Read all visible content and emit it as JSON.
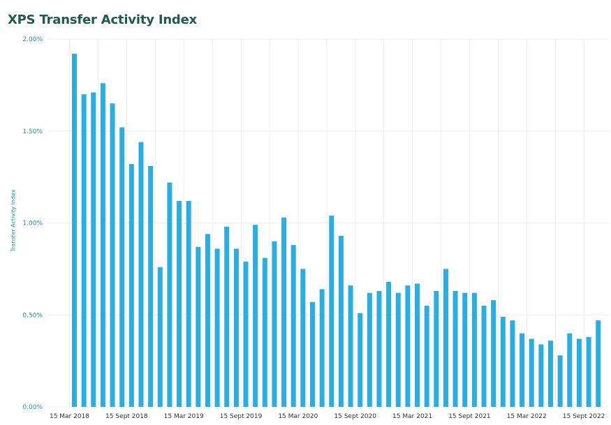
{
  "header": {
    "title": "XPS Transfer Activity Index"
  },
  "colors": {
    "bar": "#29aee3",
    "title": "#1d5c4d",
    "axis_text": "#1f8fb5",
    "grid": "#ededed"
  },
  "chart_data": {
    "type": "bar",
    "title": "XPS Transfer Activity Index",
    "xlabel": "",
    "ylabel": "Transfer Activity Index",
    "ylim": [
      0,
      0.02
    ],
    "y_ticks": [
      0,
      0.005,
      0.01,
      0.015,
      0.02
    ],
    "y_tick_labels": [
      "0.00%",
      "0.50%",
      "1.00%",
      "1.50%",
      "2.00%"
    ],
    "x_tick_labels": [
      "15 Mar 2018",
      "15 Sept 2018",
      "15 Mar 2019",
      "15 Sept 2019",
      "15 Mar 2020",
      "15 Sept 2020",
      "15 Mar 2021",
      "15 Sept 2021",
      "15 Mar 2022",
      "15 Sept 2022"
    ],
    "grid": true,
    "values": [
      0.0192,
      0.017,
      0.0171,
      0.0176,
      0.0165,
      0.0152,
      0.0132,
      0.0144,
      0.0131,
      0.0076,
      0.0122,
      0.0112,
      0.0112,
      0.0087,
      0.0094,
      0.0086,
      0.0098,
      0.0086,
      0.0079,
      0.0099,
      0.0081,
      0.009,
      0.0103,
      0.0088,
      0.0075,
      0.0057,
      0.0064,
      0.0104,
      0.0093,
      0.0066,
      0.0051,
      0.0062,
      0.0063,
      0.0068,
      0.0062,
      0.0066,
      0.0067,
      0.0055,
      0.0063,
      0.0075,
      0.0063,
      0.0062,
      0.0062,
      0.0055,
      0.0058,
      0.0049,
      0.0047,
      0.004,
      0.0037,
      0.0034,
      0.0036,
      0.0028,
      0.004,
      0.0037,
      0.0038,
      0.0047
    ]
  }
}
